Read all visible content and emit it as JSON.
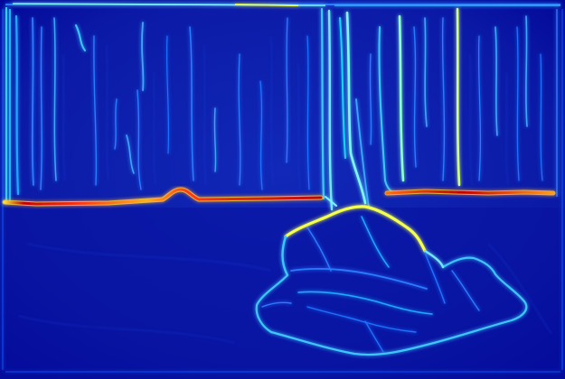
{
  "image": {
    "kind": "edge-detection heatmap",
    "colormap": "jet",
    "colors": {
      "background_dark": "#00008a",
      "background": "#0a1aa8",
      "edge_weak": "#1e73ff",
      "edge_mid": "#19d6ff",
      "edge_strong": "#eaff3c",
      "edge_peak": "#ff3b14",
      "edge_hot": "#c40000"
    }
  }
}
